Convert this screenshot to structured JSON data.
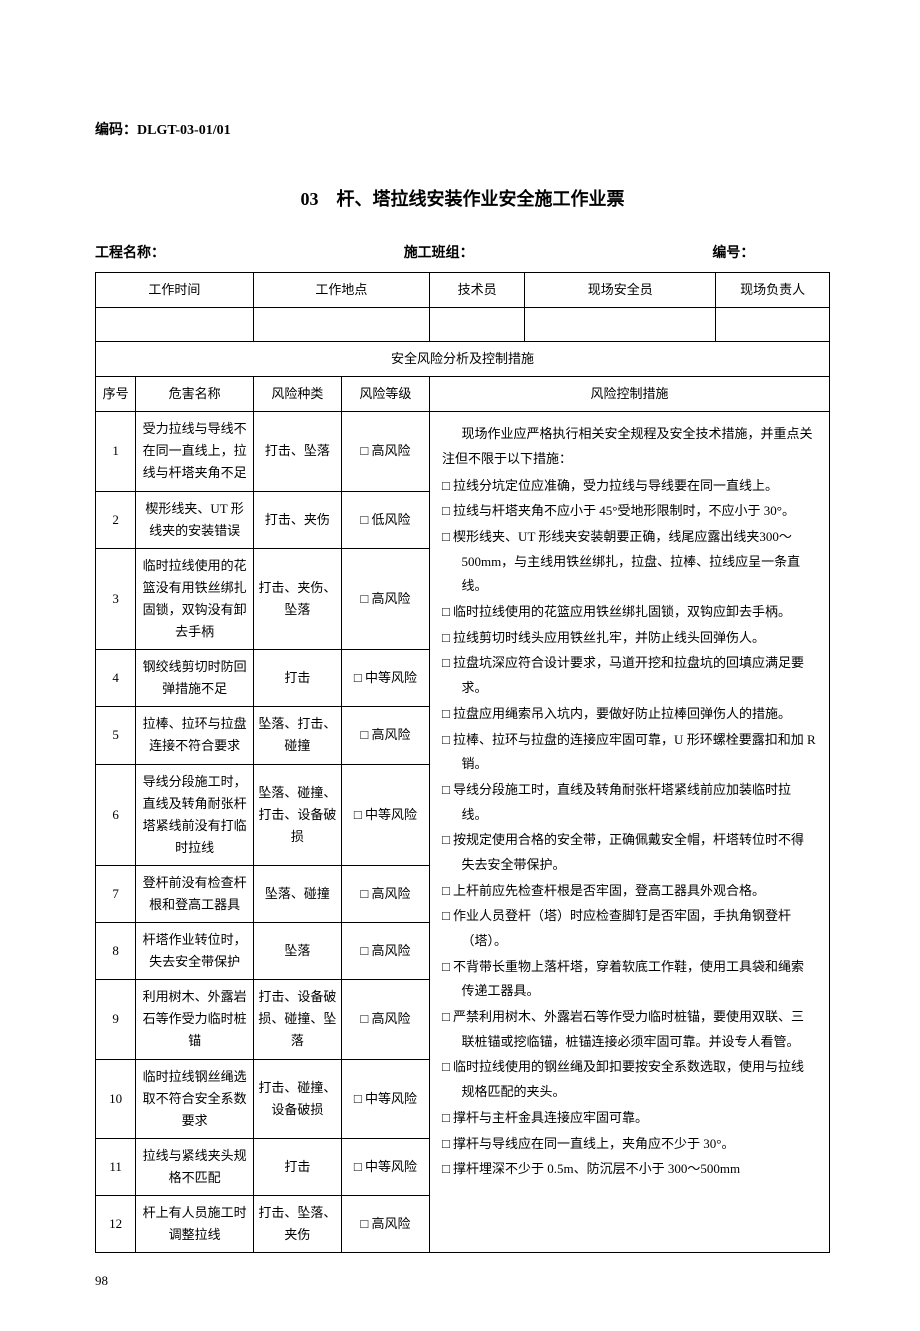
{
  "code_label": "编码：",
  "code_value": "DLGT-03-01/01",
  "title": "03　杆、塔拉线安装作业安全施工作业票",
  "header": {
    "project_label": "工程名称：",
    "team_label": "施工班组：",
    "number_label": "编号："
  },
  "top_headers": {
    "work_time": "工作时间",
    "work_place": "工作地点",
    "technician": "技术员",
    "safety_officer": "现场安全员",
    "site_leader": "现场负责人"
  },
  "section_title": "安全风险分析及控制措施",
  "col_headers": {
    "seq": "序号",
    "hazard": "危害名称",
    "type": "风险种类",
    "level": "风险等级",
    "measures": "风险控制措施"
  },
  "checkbox_glyph": "□",
  "rows": [
    {
      "seq": "1",
      "hazard": "受力拉线与导线不在同一直线上，拉线与杆塔夹角不足",
      "type": "打击、坠落",
      "level": "□ 高风险"
    },
    {
      "seq": "2",
      "hazard": "楔形线夹、UT 形线夹的安装错误",
      "type": "打击、夹伤",
      "level": "□ 低风险"
    },
    {
      "seq": "3",
      "hazard": "临时拉线使用的花篮没有用铁丝绑扎固锁，双钩没有卸去手柄",
      "type": "打击、夹伤、坠落",
      "level": "□ 高风险"
    },
    {
      "seq": "4",
      "hazard": "钢绞线剪切时防回弹措施不足",
      "type": "打击",
      "level": "□ 中等风险"
    },
    {
      "seq": "5",
      "hazard": "拉棒、拉环与拉盘连接不符合要求",
      "type": "坠落、打击、碰撞",
      "level": "□ 高风险"
    },
    {
      "seq": "6",
      "hazard": "导线分段施工时，直线及转角耐张杆塔紧线前没有打临时拉线",
      "type": "坠落、碰撞、打击、设备破损",
      "level": "□ 中等风险"
    },
    {
      "seq": "7",
      "hazard": "登杆前没有检查杆根和登高工器具",
      "type": "坠落、碰撞",
      "level": "□ 高风险"
    },
    {
      "seq": "8",
      "hazard": "杆塔作业转位时，失去安全带保护",
      "type": "坠落",
      "level": "□ 高风险"
    },
    {
      "seq": "9",
      "hazard": "利用树木、外露岩石等作受力临时桩锚",
      "type": "打击、设备破损、碰撞、坠落",
      "level": "□ 高风险"
    },
    {
      "seq": "10",
      "hazard": "临时拉线钢丝绳选取不符合安全系数要求",
      "type": "打击、碰撞、设备破损",
      "level": "□ 中等风险"
    },
    {
      "seq": "11",
      "hazard": "拉线与紧线夹头规格不匹配",
      "type": "打击",
      "level": "□ 中等风险"
    },
    {
      "seq": "12",
      "hazard": "杆上有人员施工时调整拉线",
      "type": "打击、坠落、夹伤",
      "level": "□ 高风险"
    }
  ],
  "measures": {
    "intro": "现场作业应严格执行相关安全规程及安全技术措施，并重点关注但不限于以下措施：",
    "items": [
      "拉线分坑定位应准确，受力拉线与导线要在同一直线上。",
      "拉线与杆塔夹角不应小于 45°受地形限制时，不应小于 30°。",
      "楔形线夹、UT 形线夹安装朝要正确，线尾应露出线夹300～500mm，与主线用铁丝绑扎，拉盘、拉棒、拉线应呈一条直线。",
      "临时拉线使用的花篮应用铁丝绑扎固锁，双钩应卸去手柄。",
      "拉线剪切时线头应用铁丝扎牢，并防止线头回弹伤人。",
      "拉盘坑深应符合设计要求，马道开挖和拉盘坑的回填应满足要求。",
      "拉盘应用绳索吊入坑内，要做好防止拉棒回弹伤人的措施。",
      "拉棒、拉环与拉盘的连接应牢固可靠，U 形环螺栓要露扣和加 R 销。",
      "导线分段施工时，直线及转角耐张杆塔紧线前应加装临时拉线。",
      "按规定使用合格的安全带，正确佩戴安全帽，杆塔转位时不得失去安全带保护。",
      "上杆前应先检查杆根是否牢固，登高工器具外观合格。",
      "作业人员登杆（塔）时应检查脚钉是否牢固，手执角钢登杆（塔）。",
      "不背带长重物上落杆塔，穿着软底工作鞋，使用工具袋和绳索传递工器具。",
      "严禁利用树木、外露岩石等作受力临时桩锚，要使用双联、三联桩锚或挖临锚，桩锚连接必须牢固可靠。并设专人看管。",
      "临时拉线使用的钢丝绳及卸扣要按安全系数选取，使用与拉线规格匹配的夹头。",
      "撑杆与主杆金具连接应牢固可靠。",
      "撑杆与导线应在同一直线上，夹角应不少于 30°。",
      "撑杆埋深不少于 0.5m、防沉层不小于 300～500mm"
    ]
  },
  "page_number": "98"
}
